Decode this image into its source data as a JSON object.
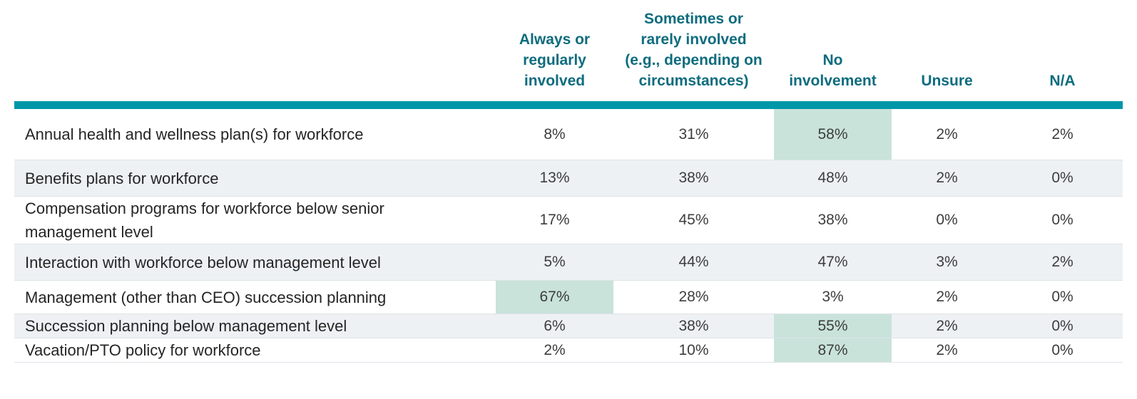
{
  "colors": {
    "header_text": "#0e6c7e",
    "divider_bar": "#0097a8",
    "highlight_cell": "#c9e3da",
    "alt_row_background": "#edf1f4"
  },
  "chart_data": {
    "type": "table",
    "columns": [
      "Always or\nregularly\ninvolved",
      "Sometimes or\nrarely involved\n(e.g., depending on\ncircumstances)",
      "No\ninvolvement",
      "Unsure",
      "N/A"
    ],
    "rows": [
      {
        "label": "Annual health and wellness plan(s) for workforce",
        "values": [
          "8%",
          "31%",
          "58%",
          "2%",
          "2%"
        ],
        "highlight_col": 2
      },
      {
        "label": "Benefits plans for workforce",
        "values": [
          "13%",
          "38%",
          "48%",
          "2%",
          "0%"
        ],
        "highlight_col": null
      },
      {
        "label": "Compensation programs for workforce below senior management level",
        "values": [
          "17%",
          "45%",
          "38%",
          "0%",
          "0%"
        ],
        "highlight_col": null
      },
      {
        "label": "Interaction with workforce below management level",
        "values": [
          "5%",
          "44%",
          "47%",
          "3%",
          "2%"
        ],
        "highlight_col": null
      },
      {
        "label": "Management (other than CEO) succession planning",
        "values": [
          "67%",
          "28%",
          "3%",
          "2%",
          "0%"
        ],
        "highlight_col": 0
      },
      {
        "label": "Succession planning below management level",
        "values": [
          "6%",
          "38%",
          "55%",
          "2%",
          "0%"
        ],
        "highlight_col": 2
      },
      {
        "label": "Vacation/PTO policy for workforce",
        "values": [
          "2%",
          "10%",
          "87%",
          "2%",
          "0%"
        ],
        "highlight_col": 2
      }
    ]
  }
}
